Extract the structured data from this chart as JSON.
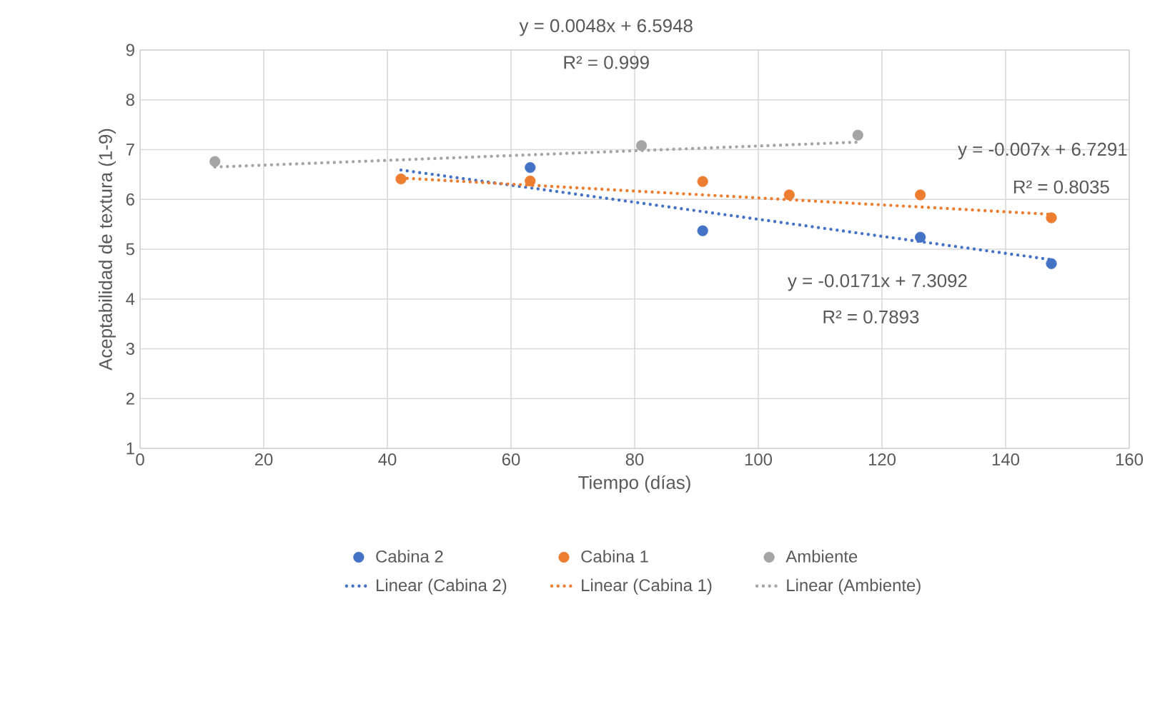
{
  "chart_data": {
    "type": "scatter",
    "xlabel": "Tiempo (días)",
    "ylabel": "Aceptabilidad de textura (1-9)",
    "xlim": [
      0,
      160
    ],
    "xticks": [
      0,
      20,
      40,
      60,
      80,
      100,
      120,
      140,
      160
    ],
    "ylim": [
      1,
      9
    ],
    "yticks": [
      1,
      2,
      3,
      4,
      5,
      6,
      7,
      8,
      9
    ],
    "grid": true,
    "legend": "bottom",
    "series": [
      {
        "name": "Cabina 2",
        "marker": "circle",
        "color": "#4472c4",
        "x": [
          63.1,
          91,
          126.2,
          147.4
        ],
        "values": [
          6.64,
          5.37,
          5.24,
          4.71
        ]
      },
      {
        "name": "Cabina 1",
        "marker": "circle",
        "color": "#ed7d31",
        "x": [
          42.2,
          63.1,
          91,
          105,
          126.2,
          147.4
        ],
        "values": [
          6.41,
          6.37,
          6.36,
          6.09,
          6.09,
          5.63
        ]
      },
      {
        "name": "Ambiente",
        "marker": "circle",
        "color": "#a5a5a5",
        "x": [
          12.1,
          81.1,
          116.1
        ],
        "values": [
          6.76,
          7.08,
          7.29
        ]
      },
      {
        "name": "Linear (Cabina 2)",
        "type": "line",
        "marker": "none",
        "line_style": "dotted",
        "color": "#4472c4",
        "x": [
          42.2,
          147.4
        ],
        "values": [
          6.59,
          4.79
        ]
      },
      {
        "name": "Linear (Cabina 1)",
        "type": "line",
        "marker": "none",
        "line_style": "dotted",
        "color": "#ed7d31",
        "x": [
          42.2,
          147.4
        ],
        "values": [
          6.43,
          5.7
        ]
      },
      {
        "name": "Linear (Ambiente)",
        "type": "line",
        "marker": "none",
        "line_style": "dotted",
        "color": "#a5a5a5",
        "x": [
          12.1,
          116.1
        ],
        "values": [
          6.65,
          7.15
        ]
      }
    ],
    "annotations": [
      "y = 0.0048x + 6.5948",
      "R² = 0.999",
      "y = -0.007x + 6.7291",
      "R² = 0.8035",
      "y = -0.0171x + 7.3092",
      "R² = 0.7893"
    ]
  }
}
